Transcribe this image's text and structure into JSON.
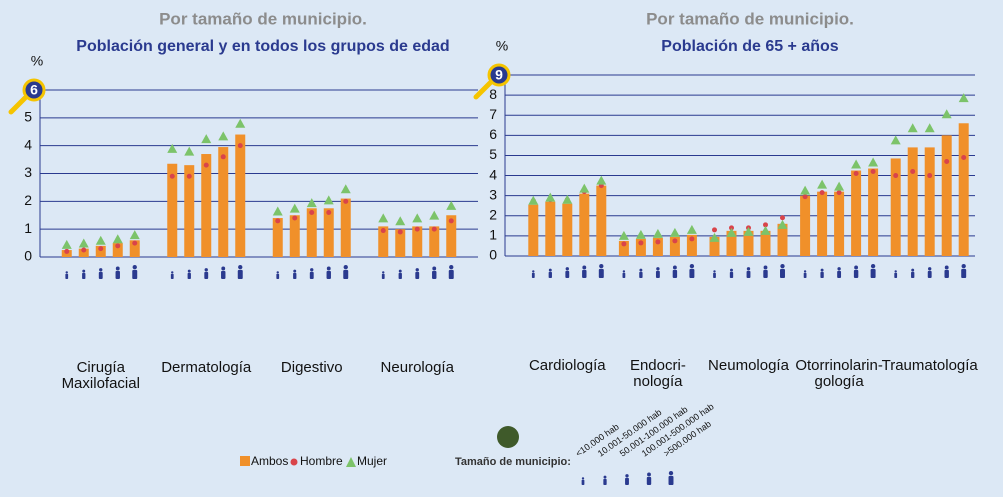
{
  "chart_data": [
    {
      "type": "bar",
      "title": "Por tamaño de municipio.",
      "subtitle": "Población general y en todos los grupos de edad",
      "y_label": "%",
      "categories": [
        "Cirugía\nMaxilofacial",
        "Dermatología",
        "Digestivo",
        "Neurología"
      ],
      "ylim": [
        0,
        6
      ],
      "yticks": [
        0,
        1,
        2,
        3,
        4,
        5,
        6
      ],
      "grid": true,
      "series": [
        {
          "name": "Ambos",
          "color": "#f0902a",
          "values": [
            [
              0.25,
              0.3,
              0.4,
              0.5,
              0.6
            ],
            [
              3.35,
              3.3,
              3.7,
              3.95,
              4.4
            ],
            [
              1.4,
              1.5,
              1.75,
              1.75,
              2.1
            ],
            [
              1.1,
              1.0,
              1.1,
              1.1,
              1.5
            ]
          ]
        },
        {
          "name": "Hombre",
          "color": "#d9444a",
          "values": [
            [
              0.2,
              0.25,
              0.3,
              0.4,
              0.5
            ],
            [
              2.9,
              2.9,
              3.3,
              3.6,
              4.0
            ],
            [
              1.3,
              1.4,
              1.6,
              1.6,
              2.0
            ],
            [
              0.95,
              0.9,
              1.0,
              1.0,
              1.3
            ]
          ]
        },
        {
          "name": "Mujer",
          "color": "#7cc36a",
          "values": [
            [
              0.4,
              0.45,
              0.55,
              0.6,
              0.75
            ],
            [
              3.85,
              3.75,
              4.2,
              4.3,
              4.75
            ],
            [
              1.6,
              1.7,
              1.9,
              2.0,
              2.4
            ],
            [
              1.35,
              1.25,
              1.35,
              1.45,
              1.8
            ]
          ]
        }
      ]
    },
    {
      "type": "bar",
      "title": "Por tamaño de municipio.",
      "subtitle": "Población de 65 + años",
      "y_label": "%",
      "categories": [
        "Cardiología",
        "Endocri-\nnología",
        "Neumología",
        "Otorrinolarin-\ngología",
        "Traumatología"
      ],
      "ylim": [
        0,
        9
      ],
      "yticks": [
        0,
        1,
        2,
        3,
        4,
        5,
        6,
        7,
        8,
        9
      ],
      "grid": true,
      "series": [
        {
          "name": "Ambos",
          "color": "#f0902a",
          "values": [
            [
              2.55,
              2.7,
              2.6,
              3.1,
              3.5
            ],
            [
              0.75,
              0.85,
              0.9,
              0.95,
              1.05
            ],
            [
              0.95,
              1.25,
              1.25,
              1.25,
              1.6
            ],
            [
              3.0,
              3.2,
              3.2,
              4.25,
              4.35
            ],
            [
              4.85,
              5.4,
              5.4,
              6.0,
              6.6
            ]
          ]
        },
        {
          "name": "Hombre",
          "color": "#d9444a",
          "values": [
            [
              2.75,
              2.8,
              2.8,
              3.2,
              3.5
            ],
            [
              0.6,
              0.65,
              0.7,
              0.75,
              0.85
            ],
            [
              1.3,
              1.4,
              1.4,
              1.55,
              1.9
            ],
            [
              2.95,
              3.15,
              3.15,
              4.1,
              4.2
            ],
            [
              4.0,
              4.2,
              4.0,
              4.7,
              4.9
            ]
          ]
        },
        {
          "name": "Mujer",
          "color": "#7cc36a",
          "values": [
            [
              2.7,
              2.85,
              2.75,
              3.3,
              3.7
            ],
            [
              0.95,
              1.0,
              1.05,
              1.1,
              1.25
            ],
            [
              0.85,
              1.1,
              1.15,
              1.2,
              1.5
            ],
            [
              3.2,
              3.5,
              3.4,
              4.5,
              4.6
            ],
            [
              5.7,
              6.3,
              6.3,
              7.0,
              7.8
            ]
          ]
        }
      ]
    }
  ],
  "legend": {
    "size_title": "Tamaño de municipio:",
    "sizes": [
      "<10.000 hab",
      "10.001-50.000 hab",
      "50.001-100.000 hab",
      "100.001-500.000 hab",
      ">500.000 hab"
    ]
  }
}
